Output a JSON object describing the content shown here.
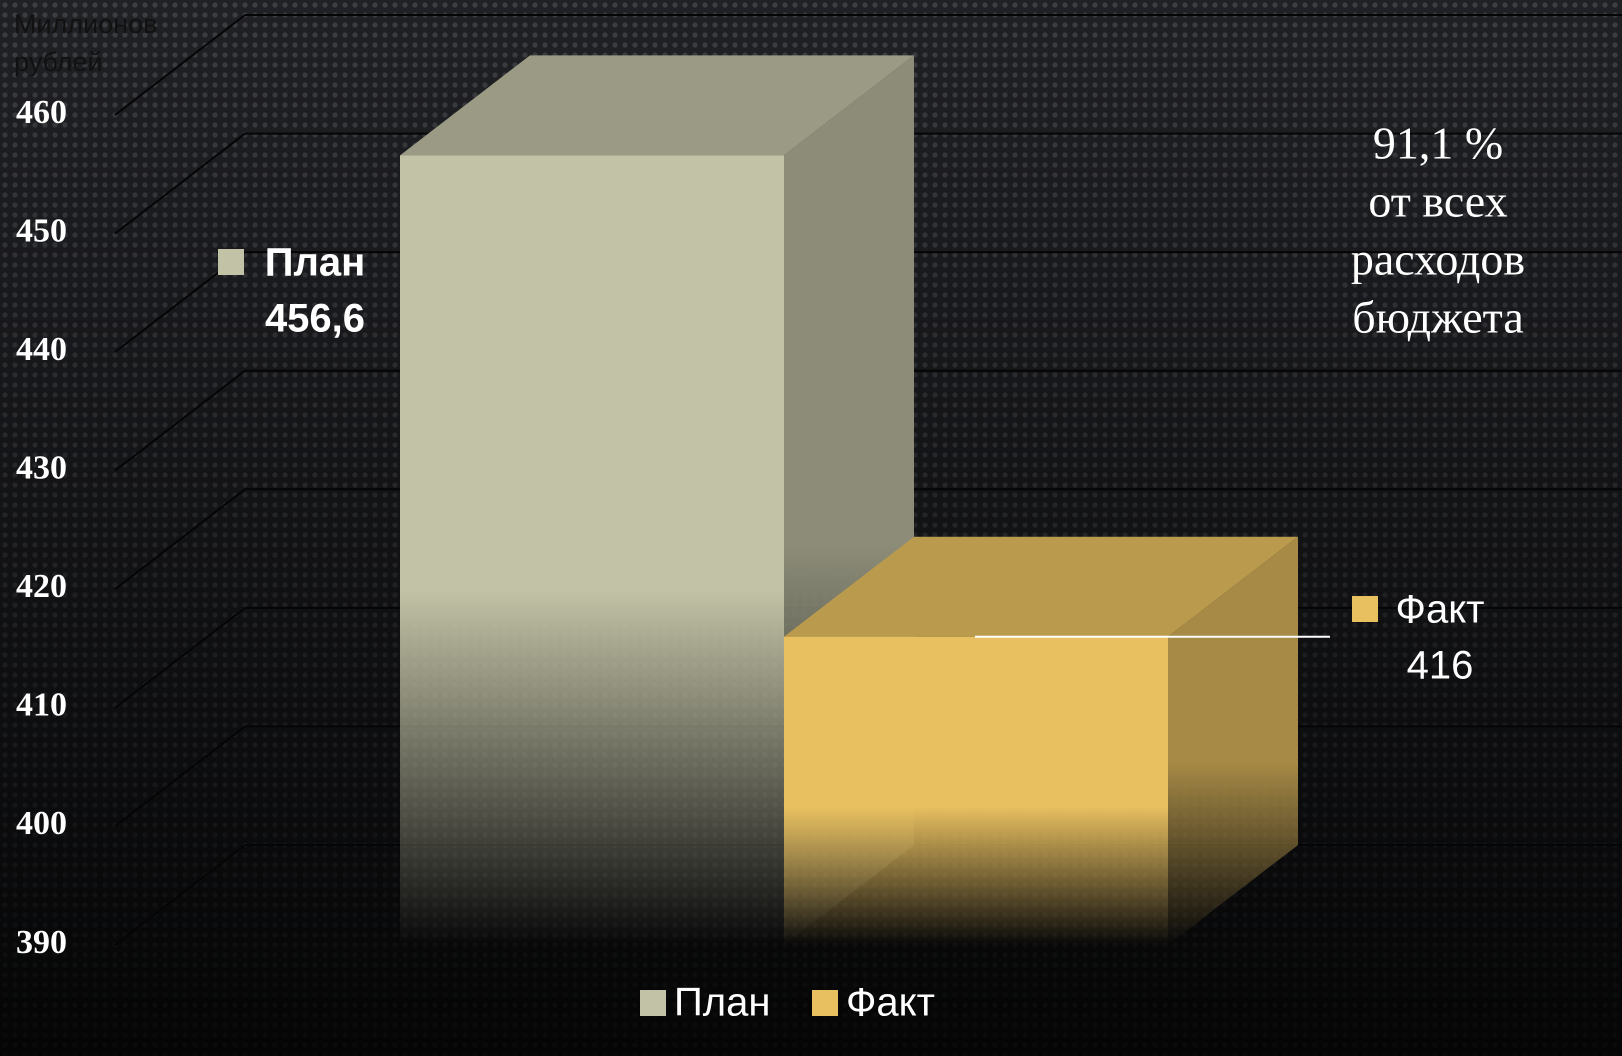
{
  "chart_data": {
    "type": "bar3d",
    "y_label": [
      "Миллионов",
      "рублей"
    ],
    "annotation": [
      "91,1 %",
      "от всех",
      "расходов",
      "бюджета"
    ],
    "categories": [
      null
    ],
    "series": [
      {
        "name": "План",
        "color": "#c2c2a6",
        "values": [
          456.6
        ],
        "value_labels": [
          "456,6"
        ]
      },
      {
        "name": "Факт",
        "color": "#e8c060",
        "values": [
          416
        ],
        "value_labels": [
          "416"
        ]
      }
    ],
    "ylim": [
      390,
      460
    ],
    "yticks": [
      390,
      400,
      410,
      420,
      430,
      440,
      450,
      460
    ],
    "grid": true
  }
}
